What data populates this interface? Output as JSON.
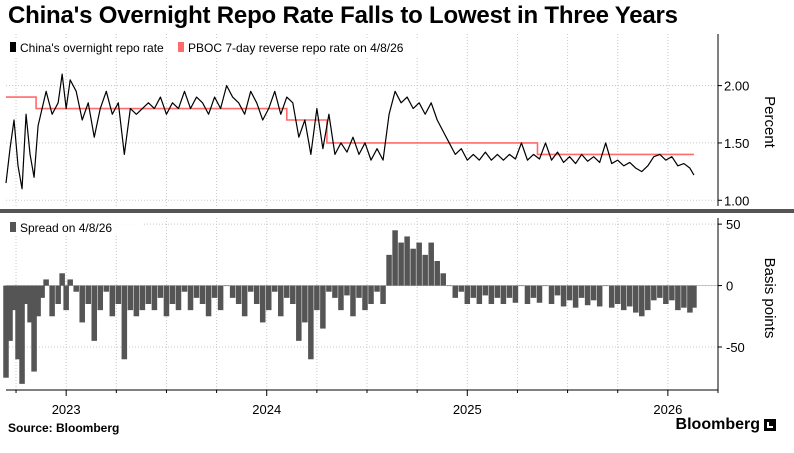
{
  "title": "China's Overnight Repo Rate Falls to Lowest in Three Years",
  "source": "Source: Bloomberg",
  "brand": "Bloomberg",
  "colors": {
    "overnight": "#000000",
    "pboc": "#ff6b6b",
    "spread": "#555555",
    "grid": "#c8c8c8",
    "divider": "#555555"
  },
  "chart_data": [
    {
      "type": "line",
      "panel": "top",
      "ylabel": "Percent",
      "ylim": [
        0.95,
        2.45
      ],
      "yticks": [
        1.0,
        1.5,
        2.0
      ],
      "ytick_labels": [
        "1.00",
        "1.50",
        "2.00"
      ],
      "xlim": [
        2022.7,
        2026.25
      ],
      "legend_position": "top-left",
      "series": [
        {
          "name": "China's overnight repo rate",
          "color": "#000000",
          "x": [
            2022.7,
            2022.72,
            2022.74,
            2022.76,
            2022.78,
            2022.8,
            2022.82,
            2022.84,
            2022.86,
            2022.88,
            2022.9,
            2022.93,
            2022.96,
            2022.98,
            2023.0,
            2023.02,
            2023.05,
            2023.08,
            2023.11,
            2023.14,
            2023.17,
            2023.2,
            2023.23,
            2023.26,
            2023.29,
            2023.32,
            2023.35,
            2023.38,
            2023.41,
            2023.44,
            2023.47,
            2023.5,
            2023.53,
            2023.56,
            2023.59,
            2023.62,
            2023.65,
            2023.68,
            2023.71,
            2023.74,
            2023.77,
            2023.8,
            2023.83,
            2023.86,
            2023.89,
            2023.92,
            2023.95,
            2023.98,
            2024.01,
            2024.04,
            2024.07,
            2024.1,
            2024.13,
            2024.16,
            2024.19,
            2024.22,
            2024.25,
            2024.28,
            2024.31,
            2024.34,
            2024.37,
            2024.4,
            2024.43,
            2024.46,
            2024.49,
            2024.52,
            2024.55,
            2024.58,
            2024.61,
            2024.64,
            2024.67,
            2024.7,
            2024.73,
            2024.76,
            2024.79,
            2024.82,
            2024.85,
            2024.88,
            2024.91,
            2024.94,
            2024.97,
            2025.0,
            2025.03,
            2025.06,
            2025.09,
            2025.12,
            2025.15,
            2025.18,
            2025.21,
            2025.24,
            2025.27,
            2025.3,
            2025.33,
            2025.36,
            2025.39,
            2025.42,
            2025.45,
            2025.48,
            2025.51,
            2025.54,
            2025.57,
            2025.6,
            2025.63,
            2025.66,
            2025.69,
            2025.72,
            2025.75,
            2025.78,
            2025.81,
            2025.84,
            2025.87,
            2025.9,
            2025.93,
            2025.96,
            2025.99,
            2026.02,
            2026.05,
            2026.08,
            2026.11,
            2026.13
          ],
          "y": [
            1.15,
            1.45,
            1.7,
            1.3,
            1.1,
            1.75,
            1.4,
            1.2,
            1.65,
            1.8,
            1.95,
            1.75,
            1.85,
            2.1,
            1.8,
            2.05,
            1.95,
            1.7,
            1.85,
            1.55,
            1.8,
            1.95,
            1.75,
            1.85,
            1.4,
            1.8,
            1.75,
            1.8,
            1.85,
            1.8,
            1.9,
            1.75,
            1.85,
            1.8,
            1.95,
            1.8,
            1.9,
            1.85,
            1.75,
            1.9,
            1.8,
            2.0,
            1.9,
            1.85,
            1.75,
            1.95,
            1.85,
            1.7,
            1.8,
            1.95,
            1.75,
            1.9,
            1.85,
            1.55,
            1.7,
            1.4,
            1.8,
            1.45,
            1.75,
            1.4,
            1.5,
            1.42,
            1.55,
            1.4,
            1.5,
            1.35,
            1.45,
            1.35,
            1.75,
            1.95,
            1.85,
            1.9,
            1.8,
            1.85,
            1.75,
            1.85,
            1.7,
            1.6,
            1.5,
            1.4,
            1.45,
            1.35,
            1.4,
            1.35,
            1.42,
            1.35,
            1.4,
            1.35,
            1.4,
            1.36,
            1.5,
            1.35,
            1.4,
            1.36,
            1.5,
            1.35,
            1.42,
            1.33,
            1.38,
            1.32,
            1.4,
            1.34,
            1.38,
            1.33,
            1.5,
            1.32,
            1.35,
            1.3,
            1.33,
            1.28,
            1.25,
            1.3,
            1.38,
            1.4,
            1.35,
            1.38,
            1.3,
            1.32,
            1.28,
            1.22
          ]
        },
        {
          "name": "PBOC 7-day reverse repo rate on 4/8/26",
          "color": "#ff6b6b",
          "x": [
            2022.7,
            2022.85,
            2022.85,
            2023.45,
            2023.45,
            2024.1,
            2024.1,
            2024.3,
            2024.3,
            2024.85,
            2024.85,
            2025.35,
            2025.35,
            2026.13
          ],
          "y": [
            1.9,
            1.9,
            1.8,
            1.8,
            1.8,
            1.8,
            1.7,
            1.7,
            1.5,
            1.5,
            1.5,
            1.5,
            1.4,
            1.4
          ]
        }
      ]
    },
    {
      "type": "bar",
      "panel": "bottom",
      "ylabel": "Basis points",
      "ylim": [
        -85,
        55
      ],
      "yticks": [
        -50,
        0,
        50
      ],
      "ytick_labels": [
        "-50",
        "0",
        "50"
      ],
      "xlim": [
        2022.7,
        2026.25
      ],
      "legend_position": "top-left",
      "series": [
        {
          "name": "Spread on 4/8/26",
          "color": "#555555",
          "x": [
            2022.7,
            2022.72,
            2022.74,
            2022.76,
            2022.78,
            2022.8,
            2022.82,
            2022.84,
            2022.86,
            2022.88,
            2022.9,
            2022.93,
            2022.96,
            2022.98,
            2023.0,
            2023.02,
            2023.05,
            2023.08,
            2023.11,
            2023.14,
            2023.17,
            2023.2,
            2023.23,
            2023.26,
            2023.29,
            2023.32,
            2023.35,
            2023.38,
            2023.41,
            2023.44,
            2023.47,
            2023.5,
            2023.53,
            2023.56,
            2023.59,
            2023.62,
            2023.65,
            2023.68,
            2023.71,
            2023.74,
            2023.77,
            2023.8,
            2023.83,
            2023.86,
            2023.89,
            2023.92,
            2023.95,
            2023.98,
            2024.01,
            2024.04,
            2024.07,
            2024.1,
            2024.13,
            2024.16,
            2024.19,
            2024.22,
            2024.25,
            2024.28,
            2024.31,
            2024.34,
            2024.37,
            2024.4,
            2024.43,
            2024.46,
            2024.49,
            2024.52,
            2024.55,
            2024.58,
            2024.61,
            2024.64,
            2024.67,
            2024.7,
            2024.73,
            2024.76,
            2024.79,
            2024.82,
            2024.85,
            2024.88,
            2024.91,
            2024.94,
            2024.97,
            2025.0,
            2025.03,
            2025.06,
            2025.09,
            2025.12,
            2025.15,
            2025.18,
            2025.21,
            2025.24,
            2025.27,
            2025.3,
            2025.33,
            2025.36,
            2025.39,
            2025.42,
            2025.45,
            2025.48,
            2025.51,
            2025.54,
            2025.57,
            2025.6,
            2025.63,
            2025.66,
            2025.69,
            2025.72,
            2025.75,
            2025.78,
            2025.81,
            2025.84,
            2025.87,
            2025.9,
            2025.93,
            2025.96,
            2025.99,
            2026.02,
            2026.05,
            2026.08,
            2026.11,
            2026.13
          ],
          "values": [
            -75,
            -45,
            -20,
            -60,
            -80,
            -15,
            -30,
            -70,
            -25,
            -10,
            5,
            -25,
            -15,
            10,
            -20,
            5,
            -5,
            -30,
            -15,
            -45,
            -20,
            -5,
            -25,
            -15,
            -60,
            -20,
            -25,
            -20,
            -15,
            -20,
            -10,
            -25,
            -15,
            -20,
            -5,
            -20,
            -10,
            -15,
            -25,
            -10,
            -20,
            0,
            -10,
            -15,
            -25,
            -5,
            -15,
            -30,
            -20,
            -5,
            -25,
            -10,
            -15,
            -45,
            -30,
            -60,
            -20,
            -35,
            -5,
            -10,
            -20,
            -8,
            -25,
            -10,
            -20,
            -15,
            -5,
            -15,
            25,
            45,
            35,
            40,
            30,
            35,
            25,
            35,
            20,
            10,
            0,
            -10,
            -5,
            -15,
            -10,
            -15,
            -8,
            -15,
            -10,
            -15,
            -10,
            -14,
            0,
            -15,
            -10,
            -14,
            0,
            -15,
            -8,
            -17,
            -12,
            -18,
            -10,
            -16,
            -12,
            -17,
            0,
            -18,
            -15,
            -20,
            -17,
            -22,
            -25,
            -20,
            -12,
            -10,
            -15,
            -12,
            -20,
            -18,
            -22,
            -18
          ]
        }
      ]
    }
  ],
  "x_axis": {
    "tick_labels": [
      "2023",
      "2024",
      "2025",
      "2026"
    ],
    "tick_positions": [
      2023,
      2024,
      2025,
      2026
    ]
  }
}
